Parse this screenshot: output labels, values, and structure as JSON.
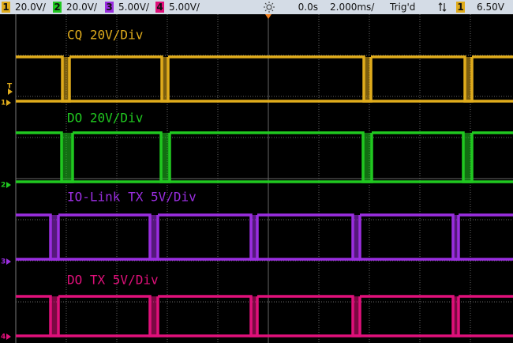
{
  "header": {
    "channels": [
      {
        "number": "1",
        "scale": "20.0V/"
      },
      {
        "number": "2",
        "scale": "20.0V/"
      },
      {
        "number": "3",
        "scale": "5.00V/"
      },
      {
        "number": "4",
        "scale": "5.00V/"
      }
    ],
    "time_offset": "0.0s",
    "timebase": "2.000ms/",
    "trigger_status": "Trig'd",
    "trigger_source": "1",
    "trigger_level": "6.50V"
  },
  "trigger_marker": "T",
  "traces": [
    {
      "label": "CQ 20V/Div",
      "marker": "1"
    },
    {
      "label": "DO 20V/Div",
      "marker": "2"
    },
    {
      "label": "IO-Link TX 5V/Div",
      "marker": "3"
    },
    {
      "label": "DO TX 5V/Div",
      "marker": "4"
    }
  ]
}
